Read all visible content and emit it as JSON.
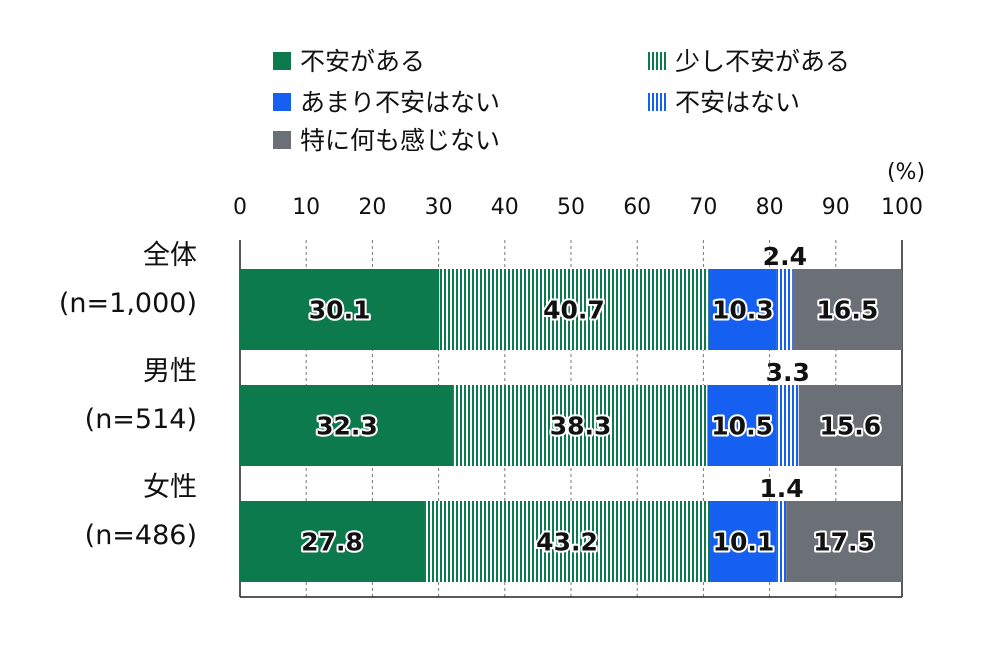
{
  "chart_data": {
    "type": "bar",
    "orientation": "horizontal",
    "stacked": true,
    "unit_label": "(%)",
    "xlim": [
      0,
      100
    ],
    "xticks": [
      "0",
      "10",
      "20",
      "30",
      "40",
      "50",
      "60",
      "70",
      "80",
      "90",
      "100"
    ],
    "categories": [
      {
        "name": "全体",
        "n": "(n=1,000)"
      },
      {
        "name": "男性",
        "n": "(n=514)"
      },
      {
        "name": "女性",
        "n": "(n=486)"
      }
    ],
    "series": [
      {
        "name": "不安がある",
        "values": [
          30.1,
          32.3,
          27.8
        ],
        "labels": [
          "30.1",
          "32.3",
          "27.8"
        ],
        "color": "#0c7a4c",
        "pattern": "solid"
      },
      {
        "name": "少し不安がある",
        "values": [
          40.7,
          38.3,
          43.2
        ],
        "labels": [
          "40.7",
          "38.3",
          "43.2"
        ],
        "color": "#0c7a4c",
        "pattern": "vertical-stripes"
      },
      {
        "name": "あまり不安はない",
        "values": [
          10.3,
          10.5,
          10.1
        ],
        "labels": [
          "10.3",
          "10.5",
          "10.1"
        ],
        "color": "#1560f0",
        "pattern": "solid"
      },
      {
        "name": "不安はない",
        "values": [
          2.4,
          3.3,
          1.4
        ],
        "labels": [
          "2.4",
          "3.3",
          "1.4"
        ],
        "color": "#1560f0",
        "pattern": "vertical-stripes",
        "label_position": "above"
      },
      {
        "name": "特に何も感じない",
        "values": [
          16.5,
          15.6,
          17.5
        ],
        "labels": [
          "16.5",
          "15.6",
          "17.5"
        ],
        "color": "#6b7077",
        "pattern": "solid"
      }
    ],
    "legend_position": "top",
    "grid": "vertical-dashed"
  }
}
